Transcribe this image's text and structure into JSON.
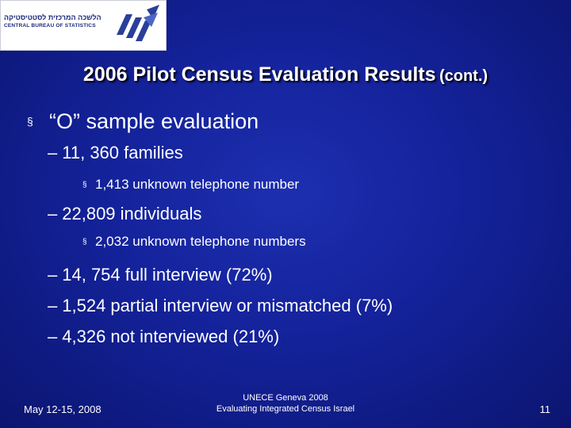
{
  "logo": {
    "hebrew_text": "הלשכה המרכזית לסטטיסטיקה",
    "english_text": "CENTRAL BUREAU OF STATISTICS",
    "colors": {
      "primary": "#2a3f9a",
      "background": "#ffffff"
    }
  },
  "title": {
    "main": "2006 Pilot Census Evaluation Results",
    "sub": "(cont.)"
  },
  "content": {
    "level1": {
      "marker": "§",
      "text": "“O” sample evaluation"
    },
    "items": [
      {
        "dash": "–",
        "text": "11, 360 families"
      },
      {
        "marker": "§",
        "text": "1,413 unknown  telephone number"
      },
      {
        "dash": "–",
        "text": "22,809 individuals"
      },
      {
        "marker": "§",
        "text": "2,032 unknown telephone numbers"
      },
      {
        "dash": "–",
        "text": "14, 754 full interview (72%)"
      },
      {
        "dash": "–",
        "text": "1,524 partial interview or mismatched (7%)"
      },
      {
        "dash": "–",
        "text": "4,326 not interviewed (21%)"
      }
    ]
  },
  "footer": {
    "date": "May 12-15, 2008",
    "center_line1": "UNECE  Geneva 2008",
    "center_line2": "Evaluating Integrated Census Israel",
    "page_number": "11"
  }
}
